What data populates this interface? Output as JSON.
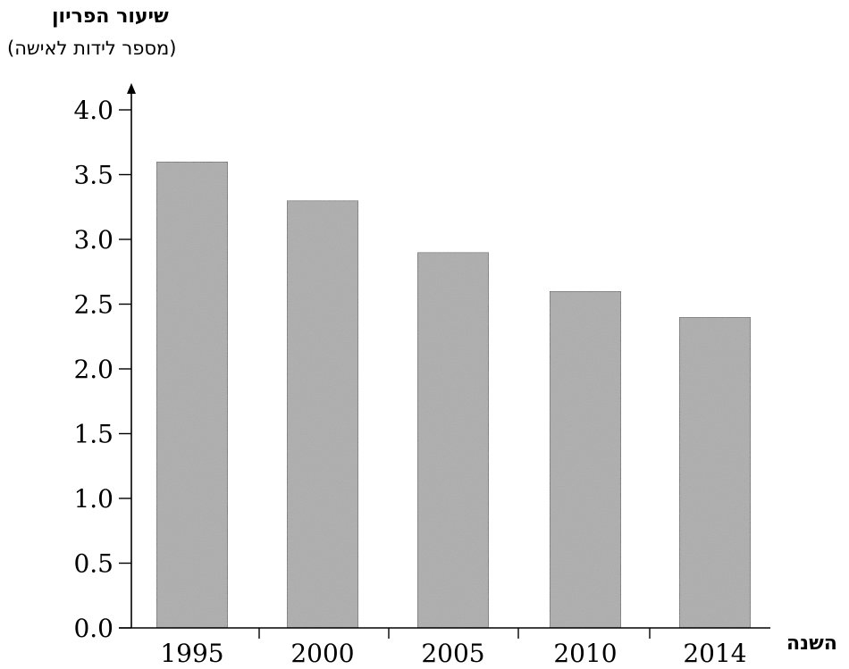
{
  "chart_data": {
    "type": "bar",
    "ylabel": "שיעור הפריון",
    "ylabel_sub": "(מספר לידות לאישה)",
    "xlabel": "השנה",
    "categories": [
      "1995",
      "2000",
      "2005",
      "2010",
      "2014"
    ],
    "values": [
      3.6,
      3.3,
      2.9,
      2.6,
      2.4
    ],
    "ylim": [
      0,
      4.0
    ],
    "yticks": [
      "0.0",
      "0.5",
      "1.0",
      "1.5",
      "2.0",
      "2.5",
      "3.0",
      "3.5",
      "4.0"
    ],
    "grid": false,
    "bar_color": "#a8a8a8"
  }
}
